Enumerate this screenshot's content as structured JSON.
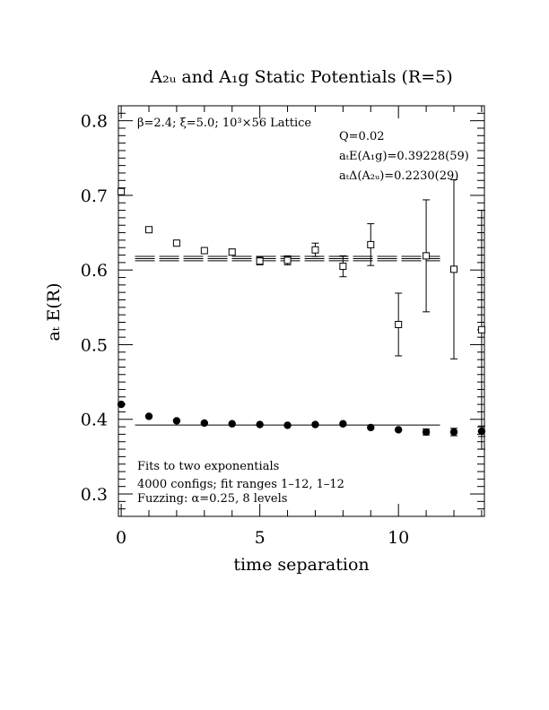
{
  "chart_data": {
    "type": "scatter",
    "title": "A₂ᵤ and A₁g Static Potentials (R=5)",
    "xlabel": "time separation",
    "ylabel": "aₜ E(R)",
    "xlim": [
      -0.1,
      13.1
    ],
    "ylim": [
      0.27,
      0.82
    ],
    "x_ticks": [
      "0",
      "5",
      "10"
    ],
    "y_ticks": [
      "0.3",
      "0.4",
      "0.5",
      "0.6",
      "0.7",
      "0.8"
    ],
    "grid": false,
    "legend": "none",
    "annotations": {
      "lattice": "β=2.4; ξ=5.0; 10³×56 Lattice",
      "q": "Q=0.02",
      "e_a1g": "aₜE(A₁g)=0.39228(59)",
      "delta_a2u": "aₜΔ(A₂ᵤ)=0.2230(29)",
      "fits_line1": "Fits to two exponentials",
      "fits_line2": "4000 configs; fit ranges 1–12, 1–12",
      "fits_line3": "Fuzzing: α=0.25, 8 levels"
    },
    "series": [
      {
        "marker": "filled-circle",
        "x": [
          0,
          1,
          2,
          3,
          4,
          5,
          6,
          7,
          8,
          9,
          10,
          11,
          12,
          13
        ],
        "y": [
          0.42,
          0.404,
          0.398,
          0.395,
          0.394,
          0.393,
          0.392,
          0.393,
          0.394,
          0.389,
          0.386,
          0.383,
          0.383,
          0.384
        ],
        "err": [
          0.002,
          0.002,
          0.002,
          0.002,
          0.002,
          0.002,
          0.002,
          0.002,
          0.003,
          0.003,
          0.003,
          0.004,
          0.005,
          0.007
        ]
      },
      {
        "marker": "open-square",
        "x": [
          0,
          1,
          2,
          3,
          4,
          5,
          6,
          7,
          8,
          9,
          10,
          11,
          12,
          13
        ],
        "y": [
          0.705,
          0.654,
          0.636,
          0.626,
          0.624,
          0.612,
          0.613,
          0.627,
          0.605,
          0.634,
          0.527,
          0.619,
          0.601,
          0.52
        ],
        "err": [
          0.002,
          0.002,
          0.003,
          0.003,
          0.004,
          0.005,
          0.006,
          0.009,
          0.014,
          0.028,
          0.042,
          0.075,
          0.12,
          0.16
        ]
      }
    ],
    "fits": [
      {
        "name": "A1g",
        "x_range": [
          0.5,
          11.5
        ],
        "value": 0.39228,
        "err": 0.00059
      },
      {
        "name": "A2u",
        "x_range": [
          0.5,
          11.5
        ],
        "value": 0.61528,
        "err": 0.0029
      }
    ]
  }
}
